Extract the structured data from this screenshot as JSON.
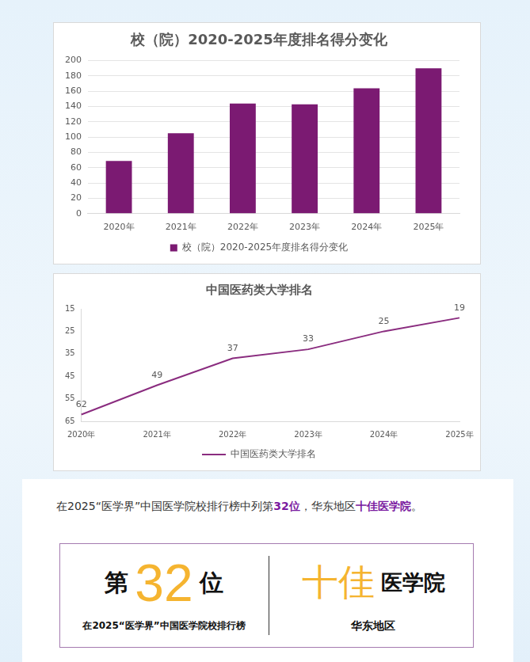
{
  "chart_data": [
    {
      "type": "bar",
      "title": "校（院）2020-2025年度排名得分变化",
      "categories": [
        "2020年",
        "2021年",
        "2022年",
        "2023年",
        "2024年",
        "2025年"
      ],
      "series": [
        {
          "name": "校（院）2020-2025年度排名得分变化",
          "color": "#7b1a72",
          "values": [
            69,
            105,
            144,
            143,
            164,
            190
          ]
        }
      ],
      "ylim": [
        0,
        200
      ],
      "yticks": [
        0,
        20,
        40,
        60,
        80,
        100,
        120,
        140,
        160,
        180,
        200
      ],
      "grid": true,
      "legend": "bottom"
    },
    {
      "type": "line",
      "title": "中国医药类大学排名",
      "categories": [
        "2020年",
        "2021年",
        "2022年",
        "2023年",
        "2024年",
        "2025年"
      ],
      "series": [
        {
          "name": "中国医药类大学排名",
          "color": "#8a2c7f",
          "values": [
            62,
            49,
            37,
            33,
            25,
            19
          ]
        }
      ],
      "ylim": [
        65,
        15
      ],
      "yticks": [
        15,
        25,
        35,
        45,
        55,
        65
      ],
      "grid": false,
      "legend": "bottom",
      "data_labels": true,
      "marker": "none"
    }
  ],
  "panel": {
    "sentence": [
      {
        "text": "在2025“医学界”中国医学院校排行榜中列第",
        "highlight": false
      },
      {
        "text": "32位",
        "highlight": true
      },
      {
        "text": "，华东地区",
        "highlight": false
      },
      {
        "text": "十佳医学院",
        "highlight": true
      },
      {
        "text": "。",
        "highlight": false
      }
    ],
    "left": {
      "prefix": "第",
      "number": 32,
      "suffix": "位",
      "caption": "在2025“医学界”中国医学院校排行榜"
    },
    "right": {
      "highlight": "十佳",
      "text": "医学院",
      "caption": "华东地区"
    }
  }
}
